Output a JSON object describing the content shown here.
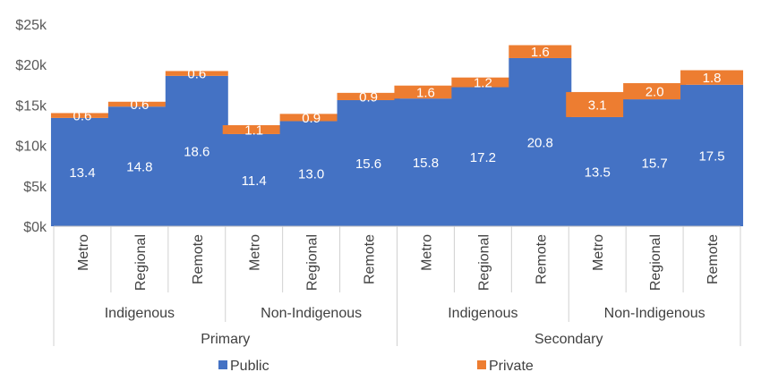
{
  "chart_data": {
    "type": "bar",
    "stacked": true,
    "categories": [
      "Metro",
      "Regional",
      "Remote",
      "Metro",
      "Regional",
      "Remote",
      "Metro",
      "Regional",
      "Remote",
      "Metro",
      "Regional",
      "Remote"
    ],
    "groups": [
      {
        "label": "Indigenous",
        "span": 3
      },
      {
        "label": "Non-Indigenous",
        "span": 3
      },
      {
        "label": "Indigenous",
        "span": 3
      },
      {
        "label": "Non-Indigenous",
        "span": 3
      }
    ],
    "supergroups": [
      {
        "label": "Primary",
        "span": 6
      },
      {
        "label": "Secondary",
        "span": 6
      }
    ],
    "series": [
      {
        "name": "Public",
        "color": "#4472C4",
        "values": [
          13.4,
          14.8,
          18.6,
          11.4,
          13.0,
          15.6,
          15.8,
          17.2,
          20.8,
          13.5,
          15.7,
          17.5
        ],
        "labels": [
          "13.4",
          "14.8",
          "18.6",
          "11.4",
          "13.0",
          "15.6",
          "15.8",
          "17.2",
          "20.8",
          "13.5",
          "15.7",
          "17.5"
        ]
      },
      {
        "name": "Private",
        "color": "#ED7D31",
        "values": [
          0.6,
          0.6,
          0.6,
          1.1,
          0.9,
          0.9,
          1.6,
          1.2,
          1.6,
          3.1,
          2.0,
          1.8
        ],
        "labels": [
          "0.6",
          "0.6",
          "0.6",
          "1.1",
          "0.9",
          "0.9",
          "1.6",
          "1.2",
          "1.6",
          "3.1",
          "2.0",
          "1.8"
        ]
      }
    ],
    "yticks": [
      {
        "value": 0,
        "label": "$0k"
      },
      {
        "value": 5,
        "label": "$5k"
      },
      {
        "value": 10,
        "label": "$10k"
      },
      {
        "value": 15,
        "label": "$15k"
      },
      {
        "value": 20,
        "label": "$20k"
      },
      {
        "value": 25,
        "label": "$25k"
      }
    ],
    "ylim": [
      0,
      25
    ],
    "grid": false,
    "legend": {
      "position": "bottom",
      "items": [
        "Public",
        "Private"
      ]
    },
    "title": "",
    "xlabel": "",
    "ylabel": ""
  }
}
